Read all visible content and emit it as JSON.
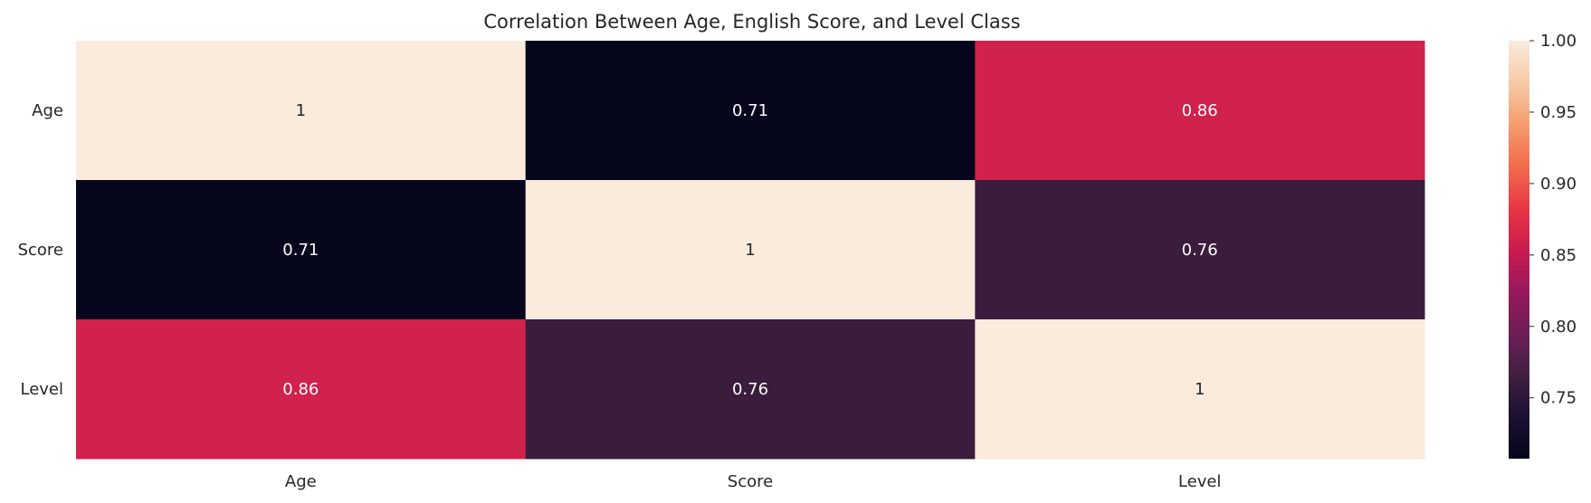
{
  "chart_data": {
    "type": "heatmap",
    "title": "Correlation Between Age, English Score, and Level Class",
    "x_categories": [
      "Age",
      "Score",
      "Level"
    ],
    "y_categories": [
      "Age",
      "Score",
      "Level"
    ],
    "values": [
      [
        1,
        0.71,
        0.86
      ],
      [
        0.71,
        1,
        0.76
      ],
      [
        0.86,
        0.76,
        1
      ]
    ],
    "cell_labels": [
      [
        "1",
        "0.71",
        "0.86"
      ],
      [
        "0.71",
        "1",
        "0.76"
      ],
      [
        "0.86",
        "0.76",
        "1"
      ]
    ],
    "colorbar": {
      "min": 0.7074,
      "max": 1.0,
      "ticks": [
        "0.75",
        "0.80",
        "0.85",
        "0.90",
        "0.95",
        "1.00"
      ],
      "colormap": "rocket"
    }
  }
}
